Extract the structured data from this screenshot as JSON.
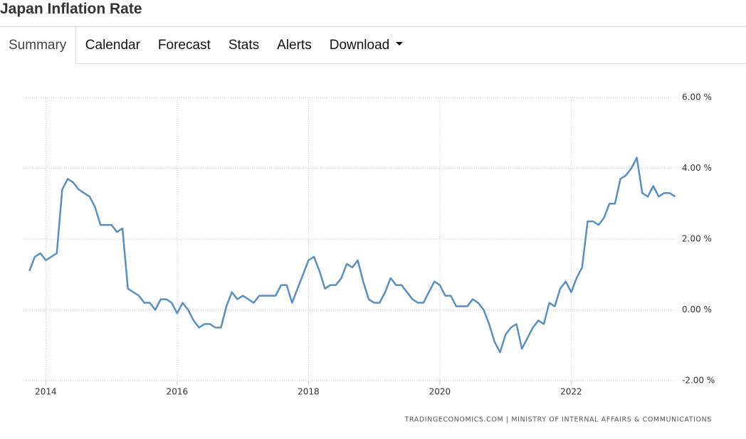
{
  "header": {
    "title": "Japan Inflation Rate"
  },
  "tabs": [
    "Summary",
    "Calendar",
    "Forecast",
    "Stats",
    "Alerts",
    "Download"
  ],
  "chart_data": {
    "type": "line",
    "x": [
      2013.75,
      2013.833,
      2013.917,
      2014,
      2014.083,
      2014.167,
      2014.25,
      2014.333,
      2014.417,
      2014.5,
      2014.583,
      2014.667,
      2014.75,
      2014.833,
      2014.917,
      2015,
      2015.083,
      2015.167,
      2015.25,
      2015.333,
      2015.417,
      2015.5,
      2015.583,
      2015.667,
      2015.75,
      2015.833,
      2015.917,
      2016,
      2016.083,
      2016.167,
      2016.25,
      2016.333,
      2016.417,
      2016.5,
      2016.583,
      2016.667,
      2016.75,
      2016.833,
      2016.917,
      2017,
      2017.083,
      2017.167,
      2017.25,
      2017.333,
      2017.417,
      2017.5,
      2017.583,
      2017.667,
      2017.75,
      2017.833,
      2017.917,
      2018,
      2018.083,
      2018.167,
      2018.25,
      2018.333,
      2018.417,
      2018.5,
      2018.583,
      2018.667,
      2018.75,
      2018.833,
      2018.917,
      2019,
      2019.083,
      2019.167,
      2019.25,
      2019.333,
      2019.417,
      2019.5,
      2019.583,
      2019.667,
      2019.75,
      2019.833,
      2019.917,
      2020,
      2020.083,
      2020.167,
      2020.25,
      2020.333,
      2020.417,
      2020.5,
      2020.583,
      2020.667,
      2020.75,
      2020.833,
      2020.917,
      2021,
      2021.083,
      2021.167,
      2021.25,
      2021.333,
      2021.417,
      2021.5,
      2021.583,
      2021.667,
      2021.75,
      2021.833,
      2021.917,
      2022,
      2022.083,
      2022.167,
      2022.25,
      2022.333,
      2022.417,
      2022.5,
      2022.583,
      2022.667,
      2022.75,
      2022.833,
      2022.917,
      2023,
      2023.083,
      2023.167,
      2023.25,
      2023.333,
      2023.417,
      2023.5,
      2023.583
    ],
    "values": [
      1.1,
      1.5,
      1.6,
      1.4,
      1.5,
      1.6,
      3.4,
      3.7,
      3.6,
      3.4,
      3.3,
      3.2,
      2.9,
      2.4,
      2.4,
      2.4,
      2.2,
      2.3,
      0.6,
      0.5,
      0.4,
      0.2,
      0.2,
      0.0,
      0.3,
      0.3,
      0.2,
      -0.1,
      0.2,
      0.0,
      -0.3,
      -0.5,
      -0.4,
      -0.4,
      -0.5,
      -0.5,
      0.1,
      0.5,
      0.3,
      0.4,
      0.3,
      0.2,
      0.4,
      0.4,
      0.4,
      0.4,
      0.7,
      0.7,
      0.2,
      0.6,
      1.0,
      1.4,
      1.5,
      1.1,
      0.6,
      0.7,
      0.7,
      0.9,
      1.3,
      1.2,
      1.4,
      0.8,
      0.3,
      0.2,
      0.2,
      0.5,
      0.9,
      0.7,
      0.7,
      0.5,
      0.3,
      0.2,
      0.2,
      0.5,
      0.8,
      0.7,
      0.4,
      0.4,
      0.1,
      0.1,
      0.1,
      0.3,
      0.2,
      0.0,
      -0.4,
      -0.9,
      -1.2,
      -0.7,
      -0.5,
      -0.4,
      -1.1,
      -0.8,
      -0.5,
      -0.3,
      -0.4,
      0.2,
      0.1,
      0.6,
      0.8,
      0.5,
      0.9,
      1.2,
      2.5,
      2.5,
      2.4,
      2.6,
      3.0,
      3.0,
      3.7,
      3.8,
      4.0,
      4.3,
      3.3,
      3.2,
      3.5,
      3.2,
      3.3,
      3.3,
      3.2
    ],
    "color": "#5b8fbd",
    "xlim": [
      2013.66,
      2023.6
    ],
    "xticks": [
      2014,
      2016,
      2018,
      2020,
      2022
    ],
    "ylim": [
      -2,
      6
    ],
    "yticks": [
      {
        "value": -2,
        "label": "-2.00 %"
      },
      {
        "value": 0,
        "label": "0.00 %"
      },
      {
        "value": 2,
        "label": "2.00 %"
      },
      {
        "value": 4,
        "label": "4.00 %"
      },
      {
        "value": 6,
        "label": "6.00 %"
      }
    ],
    "grid": true,
    "source": "TRADINGECONOMICS.COM | MINISTRY OF INTERNAL AFFAIRS & COMMUNICATIONS"
  }
}
